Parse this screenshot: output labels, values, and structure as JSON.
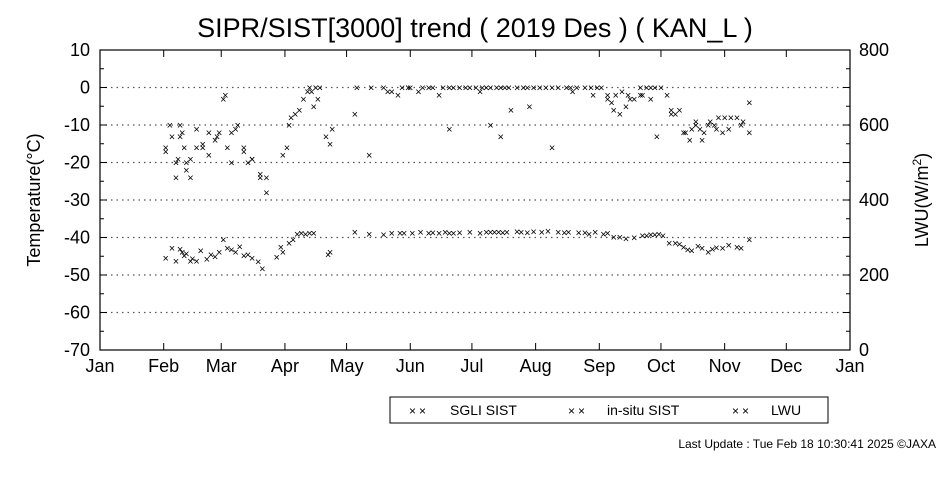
{
  "footer": {
    "last_update": "Last Update : Tue Feb 18 10:30:41 2025  ©JAXA"
  },
  "chart_data": {
    "type": "scatter",
    "title": "SIPR/SIST[3000] trend ( 2019 Des ) ( KAN_L )",
    "ylabel": "Temperature(°C)",
    "y2label": "LWU(W/m²)",
    "y2label_base": "LWU(W/m",
    "y2label_sup": "2",
    "y2label_end": ")",
    "ylim": [
      -70,
      10
    ],
    "y2lim": [
      0,
      800
    ],
    "yticks": [
      10,
      0,
      -10,
      -20,
      -30,
      -40,
      -50,
      -60,
      -70
    ],
    "y2ticks": [
      800,
      600,
      400,
      200,
      0
    ],
    "months": [
      "Jan",
      "Feb",
      "Mar",
      "Apr",
      "May",
      "Jun",
      "Jul",
      "Aug",
      "Sep",
      "Oct",
      "Nov",
      "Dec",
      "Jan"
    ],
    "x_unit": "day of year 2019",
    "grid": "horizontal dotted",
    "legend_position": "bottom",
    "marker": "×",
    "series": [
      {
        "name": "SGLI SIST",
        "color": "#ff9900",
        "axis": "left",
        "points": [
          [
            32,
            -17
          ],
          [
            35,
            -13
          ],
          [
            37,
            -24
          ],
          [
            39,
            -13
          ],
          [
            42,
            -22
          ],
          [
            44,
            -24
          ],
          [
            47,
            -16
          ],
          [
            50,
            -15
          ],
          [
            53,
            -18
          ],
          [
            56,
            -14
          ],
          [
            58,
            -12
          ],
          [
            62,
            -16
          ],
          [
            64,
            -20
          ],
          [
            66,
            -11
          ],
          [
            70,
            -16
          ],
          [
            74,
            -19
          ],
          [
            78,
            -23
          ],
          [
            81,
            -28
          ],
          [
            89,
            -18
          ],
          [
            92,
            -10
          ],
          [
            95,
            -7
          ],
          [
            101,
            -1
          ],
          [
            104,
            -5
          ],
          [
            106,
            -3
          ],
          [
            110,
            -13
          ],
          [
            112,
            -15
          ],
          [
            124,
            -7
          ],
          [
            131,
            -18
          ],
          [
            140,
            -1
          ],
          [
            145,
            -2
          ],
          [
            150,
            0
          ],
          [
            165,
            -2
          ],
          [
            170,
            -11
          ],
          [
            178,
            0
          ],
          [
            185,
            -1
          ],
          [
            190,
            -10
          ],
          [
            195,
            -13
          ],
          [
            200,
            -6
          ],
          [
            209,
            -5
          ],
          [
            220,
            -16
          ],
          [
            230,
            -1
          ],
          [
            240,
            -2
          ],
          [
            247,
            -3
          ],
          [
            250,
            -6
          ],
          [
            253,
            -7
          ],
          [
            257,
            -2
          ],
          [
            263,
            -2
          ],
          [
            268,
            -3
          ],
          [
            271,
            -13
          ],
          [
            278,
            -7
          ],
          [
            284,
            -12
          ],
          [
            287,
            -14
          ],
          [
            290,
            -10
          ],
          [
            293,
            -14
          ],
          [
            296,
            -10
          ],
          [
            300,
            -11
          ],
          [
            303,
            -12
          ],
          [
            306,
            -11
          ],
          [
            312,
            -10
          ],
          [
            316,
            -12
          ]
        ]
      },
      {
        "name": "in-situ SIST",
        "color": "#ee1111",
        "axis": "left",
        "points": [
          [
            32,
            -16
          ],
          [
            34,
            -10
          ],
          [
            37,
            -20
          ],
          [
            38,
            -19
          ],
          [
            39,
            -10
          ],
          [
            40,
            -12
          ],
          [
            41,
            -16
          ],
          [
            42,
            -20
          ],
          [
            44,
            -19
          ],
          [
            47,
            -11
          ],
          [
            50,
            -16
          ],
          [
            53,
            -12
          ],
          [
            57,
            -13
          ],
          [
            60,
            -3
          ],
          [
            61,
            -2
          ],
          [
            64,
            -12
          ],
          [
            67,
            -10
          ],
          [
            70,
            -17
          ],
          [
            72,
            -20
          ],
          [
            74,
            -19
          ],
          [
            78,
            -24
          ],
          [
            81,
            -24
          ],
          [
            91,
            -16
          ],
          [
            93,
            -8
          ],
          [
            97,
            -6
          ],
          [
            99,
            -3
          ],
          [
            102,
            0
          ],
          [
            103,
            -1
          ],
          [
            105,
            0
          ],
          [
            107,
            0
          ],
          [
            113,
            -11
          ],
          [
            125,
            0
          ],
          [
            132,
            0
          ],
          [
            138,
            0
          ],
          [
            142,
            -1
          ],
          [
            147,
            0
          ],
          [
            151,
            0
          ],
          [
            155,
            -1
          ],
          [
            157,
            0
          ],
          [
            160,
            0
          ],
          [
            162,
            0
          ],
          [
            167,
            0
          ],
          [
            170,
            0
          ],
          [
            172,
            0
          ],
          [
            175,
            0
          ],
          [
            180,
            0
          ],
          [
            183,
            0
          ],
          [
            186,
            0
          ],
          [
            188,
            0
          ],
          [
            190,
            0
          ],
          [
            193,
            0
          ],
          [
            195,
            0
          ],
          [
            197,
            0
          ],
          [
            199,
            0
          ],
          [
            203,
            0
          ],
          [
            206,
            0
          ],
          [
            208,
            0
          ],
          [
            211,
            0
          ],
          [
            214,
            0
          ],
          [
            217,
            0
          ],
          [
            220,
            0
          ],
          [
            223,
            0
          ],
          [
            227,
            0
          ],
          [
            229,
            0
          ],
          [
            232,
            0
          ],
          [
            236,
            0
          ],
          [
            239,
            0
          ],
          [
            242,
            0
          ],
          [
            244,
            0
          ],
          [
            247,
            -2
          ],
          [
            249,
            -4
          ],
          [
            251,
            -2
          ],
          [
            254,
            -1
          ],
          [
            256,
            -5
          ],
          [
            258,
            -3
          ],
          [
            260,
            -3
          ],
          [
            263,
            0
          ],
          [
            264,
            -2
          ],
          [
            266,
            0
          ],
          [
            268,
            0
          ],
          [
            270,
            0
          ],
          [
            273,
            0
          ],
          [
            276,
            -2
          ],
          [
            278,
            -6
          ],
          [
            280,
            -7
          ],
          [
            282,
            -6
          ],
          [
            285,
            -12
          ],
          [
            288,
            -11
          ],
          [
            290,
            -9
          ],
          [
            292,
            -11
          ],
          [
            294,
            -12
          ],
          [
            297,
            -9
          ],
          [
            299,
            -10
          ],
          [
            301,
            -8
          ],
          [
            304,
            -8
          ],
          [
            307,
            -8
          ],
          [
            310,
            -8
          ],
          [
            313,
            -9
          ],
          [
            316,
            -4
          ]
        ]
      },
      {
        "name": "LWU",
        "color": "#1111ee",
        "axis": "right",
        "points": [
          [
            32,
            246
          ],
          [
            35,
            272
          ],
          [
            37,
            238
          ],
          [
            39,
            270
          ],
          [
            40,
            262
          ],
          [
            41,
            252
          ],
          [
            42,
            258
          ],
          [
            44,
            238
          ],
          [
            45,
            244
          ],
          [
            47,
            238
          ],
          [
            49,
            265
          ],
          [
            52,
            243
          ],
          [
            54,
            255
          ],
          [
            56,
            250
          ],
          [
            58,
            262
          ],
          [
            60,
            295
          ],
          [
            62,
            272
          ],
          [
            64,
            268
          ],
          [
            66,
            262
          ],
          [
            68,
            276
          ],
          [
            70,
            252
          ],
          [
            72,
            255
          ],
          [
            74,
            245
          ],
          [
            77,
            236
          ],
          [
            79,
            218
          ],
          [
            86,
            248
          ],
          [
            88,
            275
          ],
          [
            89,
            262
          ],
          [
            92,
            285
          ],
          [
            94,
            295
          ],
          [
            96,
            310
          ],
          [
            98,
            312
          ],
          [
            100,
            310
          ],
          [
            102,
            312
          ],
          [
            104,
            312
          ],
          [
            111,
            255
          ],
          [
            112,
            262
          ],
          [
            124,
            315
          ],
          [
            131,
            310
          ],
          [
            138,
            308
          ],
          [
            142,
            312
          ],
          [
            146,
            312
          ],
          [
            148,
            312
          ],
          [
            152,
            312
          ],
          [
            156,
            315
          ],
          [
            160,
            312
          ],
          [
            162,
            314
          ],
          [
            165,
            312
          ],
          [
            168,
            315
          ],
          [
            170,
            312
          ],
          [
            172,
            312
          ],
          [
            175,
            314
          ],
          [
            180,
            315
          ],
          [
            185,
            312
          ],
          [
            188,
            315
          ],
          [
            190,
            315
          ],
          [
            192,
            315
          ],
          [
            194,
            315
          ],
          [
            196,
            313
          ],
          [
            198,
            315
          ],
          [
            203,
            316
          ],
          [
            205,
            315
          ],
          [
            208,
            314
          ],
          [
            211,
            316
          ],
          [
            215,
            315
          ],
          [
            218,
            318
          ],
          [
            223,
            315
          ],
          [
            226,
            314
          ],
          [
            228,
            315
          ],
          [
            233,
            314
          ],
          [
            236,
            314
          ],
          [
            238,
            310
          ],
          [
            241,
            315
          ],
          [
            245,
            310
          ],
          [
            247,
            312
          ],
          [
            250,
            302
          ],
          [
            253,
            302
          ],
          [
            256,
            298
          ],
          [
            260,
            300
          ],
          [
            264,
            305
          ],
          [
            266,
            305
          ],
          [
            268,
            308
          ],
          [
            270,
            308
          ],
          [
            272,
            310
          ],
          [
            274,
            306
          ],
          [
            277,
            285
          ],
          [
            280,
            285
          ],
          [
            282,
            283
          ],
          [
            284,
            275
          ],
          [
            286,
            268
          ],
          [
            288,
            265
          ],
          [
            291,
            278
          ],
          [
            293,
            272
          ],
          [
            296,
            262
          ],
          [
            298,
            270
          ],
          [
            300,
            273
          ],
          [
            303,
            272
          ],
          [
            306,
            280
          ],
          [
            310,
            275
          ],
          [
            312,
            272
          ],
          [
            316,
            295
          ]
        ]
      }
    ]
  }
}
